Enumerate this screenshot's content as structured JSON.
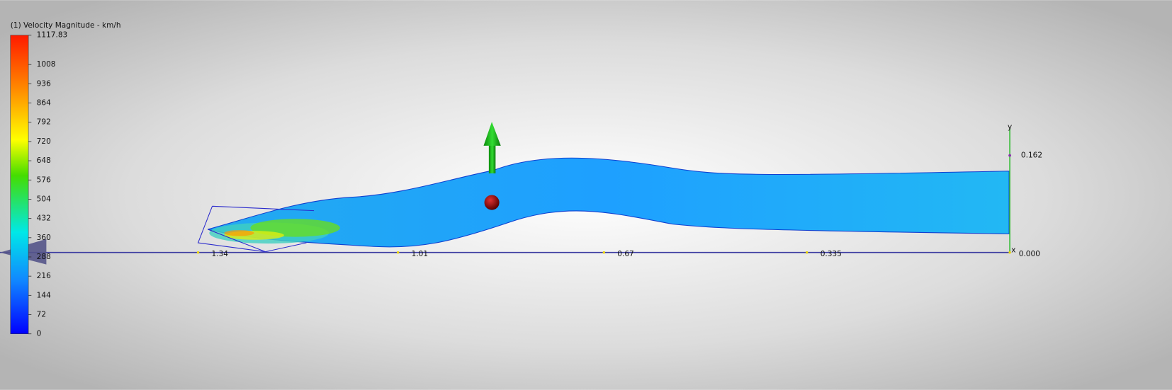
{
  "legend": {
    "title": "(1) Velocity Magnitude - km/h",
    "min": 0,
    "max": 1117.83,
    "ticks": [
      1117.83,
      1008,
      936,
      864,
      792,
      720,
      648,
      576,
      504,
      432,
      360,
      288,
      216,
      144,
      72,
      0
    ]
  },
  "x_axis": {
    "ticks": [
      1.34,
      1.01,
      0.67,
      0.335,
      {
        "value": 0,
        "label": "0.000"
      }
    ],
    "end_label": "x"
  },
  "y_axis": {
    "label": "y",
    "tick": 0.162
  }
}
